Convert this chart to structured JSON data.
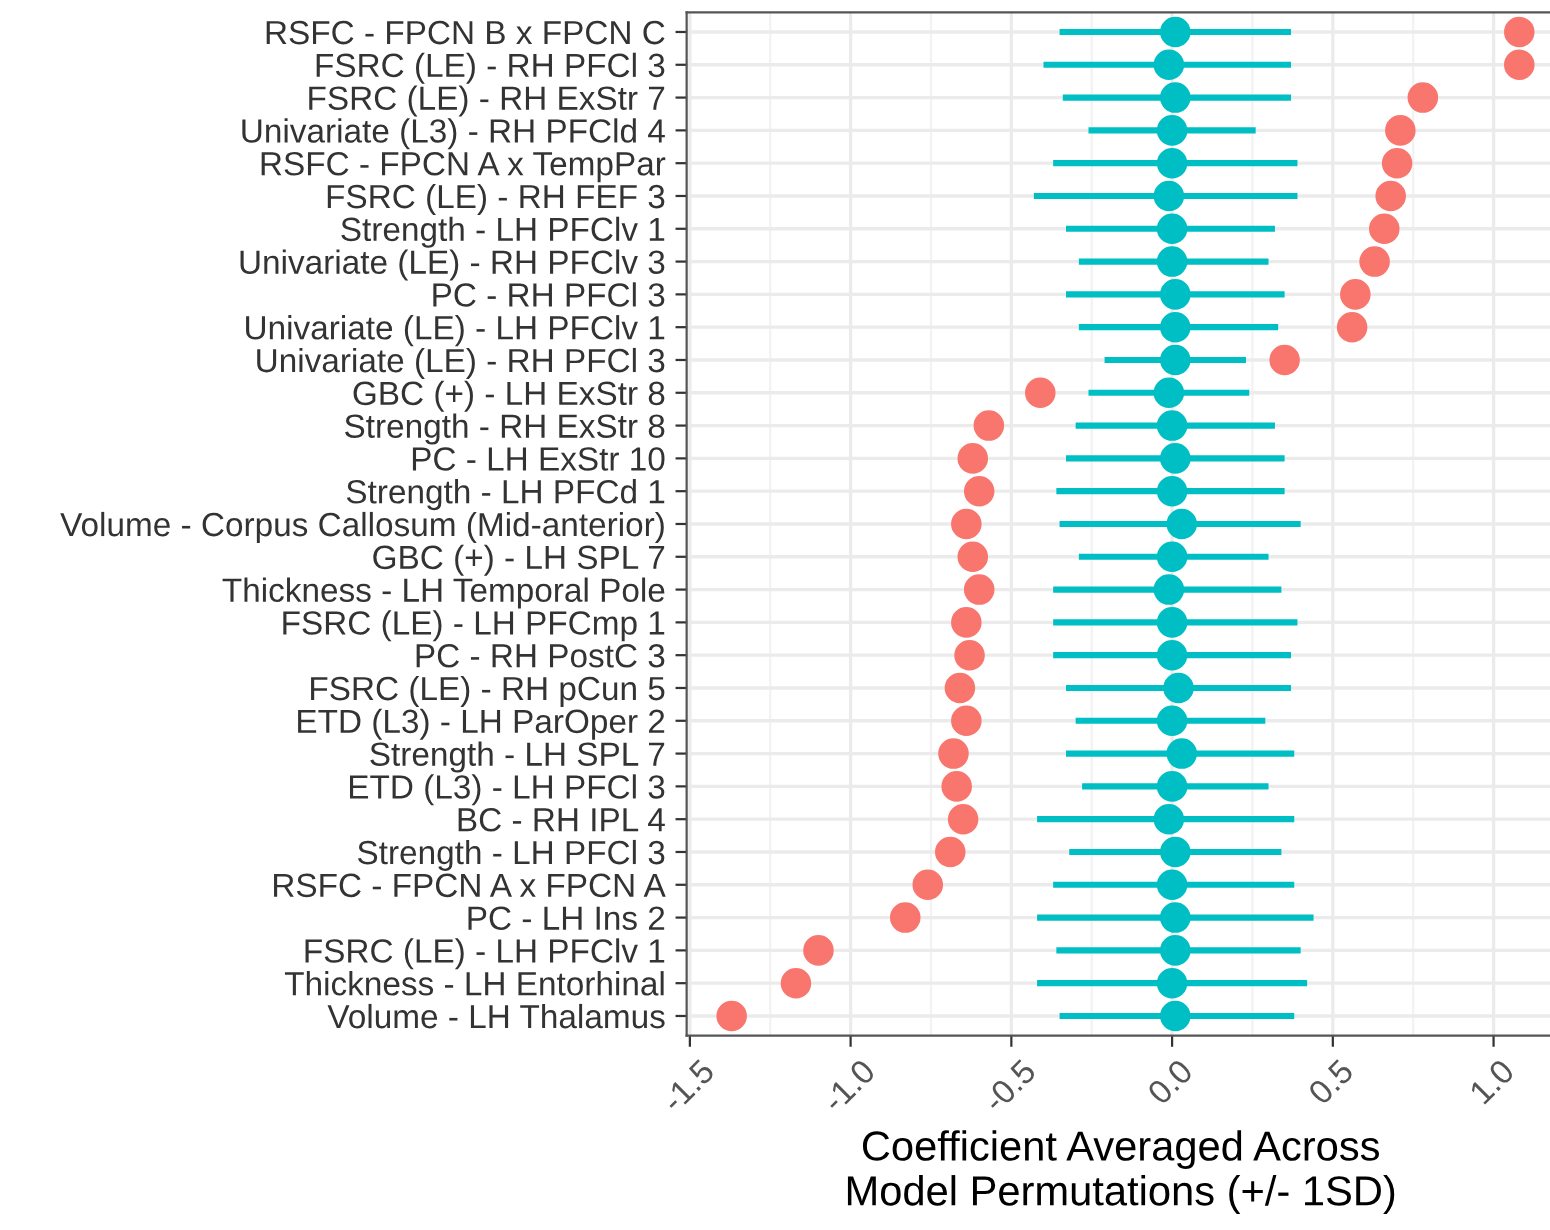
{
  "chart_data": {
    "type": "scatter",
    "orientation": "horizontal",
    "xlabel": "Coefficient Averaged Across\nModel Permutations (+/- 1SD)",
    "categories": [
      "RSFC - FPCN B x FPCN C",
      "FSRC (LE) - RH PFCl 3",
      "FSRC (LE) - RH ExStr 7",
      "Univariate (L3) - RH PFCld 4",
      "RSFC - FPCN A x TempPar",
      "FSRC (LE) - RH FEF 3",
      "Strength - LH PFClv 1",
      "Univariate (LE) - RH PFClv 3",
      "PC - RH PFCl 3",
      "Univariate (LE) - LH PFClv 1",
      "Univariate (LE) - RH PFCl 3",
      "GBC (+) - LH ExStr 8",
      "Strength - RH ExStr 8",
      "PC - LH ExStr 10",
      "Strength - LH PFCd 1",
      "Volume - Corpus Callosum (Mid-anterior)",
      "GBC (+) - LH SPL 7",
      "Thickness - LH Temporal Pole",
      "FSRC (LE) - LH PFCmp 1",
      "PC - RH PostC 3",
      "FSRC (LE) - RH pCun 5",
      "ETD (L3) - LH ParOper 2",
      "Strength - LH SPL 7",
      "ETD (L3) - LH PFCl 3",
      "BC - RH IPL 4",
      "Strength - LH PFCl 3",
      "RSFC - FPCN A x FPCN A",
      "PC - LH Ins 2",
      "FSRC (LE) - LH PFClv 1",
      "Thickness - LH Entorhinal",
      "Volume - LH Thalamus"
    ],
    "series": [
      {
        "color": "#f8766d",
        "values": [
          1.08,
          1.08,
          0.78,
          0.71,
          0.7,
          0.68,
          0.66,
          0.63,
          0.57,
          0.56,
          0.35,
          -0.41,
          -0.57,
          -0.62,
          -0.6,
          -0.64,
          -0.62,
          -0.6,
          -0.64,
          -0.63,
          -0.66,
          -0.64,
          -0.68,
          -0.67,
          -0.65,
          -0.69,
          -0.76,
          -0.83,
          -1.1,
          -1.17,
          -1.37
        ]
      },
      {
        "color": "#00bfc4",
        "values": [
          0.01,
          -0.01,
          0.01,
          0.0,
          0.0,
          -0.01,
          0.0,
          0.0,
          0.01,
          0.01,
          0.01,
          -0.01,
          0.0,
          0.01,
          0.0,
          0.03,
          0.0,
          -0.01,
          0.0,
          0.0,
          0.02,
          0.0,
          0.03,
          0.0,
          -0.01,
          0.01,
          0.0,
          0.01,
          0.01,
          0.0,
          0.01
        ],
        "errors": [
          [
            -0.35,
            0.37
          ],
          [
            -0.4,
            0.37
          ],
          [
            -0.34,
            0.37
          ],
          [
            -0.26,
            0.26
          ],
          [
            -0.37,
            0.39
          ],
          [
            -0.43,
            0.39
          ],
          [
            -0.33,
            0.32
          ],
          [
            -0.29,
            0.3
          ],
          [
            -0.33,
            0.35
          ],
          [
            -0.29,
            0.33
          ],
          [
            -0.21,
            0.23
          ],
          [
            -0.26,
            0.24
          ],
          [
            -0.3,
            0.32
          ],
          [
            -0.33,
            0.35
          ],
          [
            -0.36,
            0.35
          ],
          [
            -0.35,
            0.4
          ],
          [
            -0.29,
            0.3
          ],
          [
            -0.37,
            0.34
          ],
          [
            -0.37,
            0.39
          ],
          [
            -0.37,
            0.37
          ],
          [
            -0.33,
            0.37
          ],
          [
            -0.3,
            0.29
          ],
          [
            -0.33,
            0.38
          ],
          [
            -0.28,
            0.3
          ],
          [
            -0.42,
            0.38
          ],
          [
            -0.32,
            0.34
          ],
          [
            -0.37,
            0.38
          ],
          [
            -0.42,
            0.44
          ],
          [
            -0.36,
            0.4
          ],
          [
            -0.42,
            0.42
          ],
          [
            -0.35,
            0.38
          ]
        ]
      }
    ],
    "xlim": [
      -1.51,
      1.19
    ],
    "xticks": [
      {
        "value": -1.5,
        "label": "-1.5"
      },
      {
        "value": -1.0,
        "label": "-1.0"
      },
      {
        "value": -0.5,
        "label": "-0.5"
      },
      {
        "value": 0.0,
        "label": "0.0"
      },
      {
        "value": 0.5,
        "label": "0.5"
      },
      {
        "value": 1.0,
        "label": "1.0"
      }
    ],
    "grid": true,
    "marker": "circle"
  }
}
